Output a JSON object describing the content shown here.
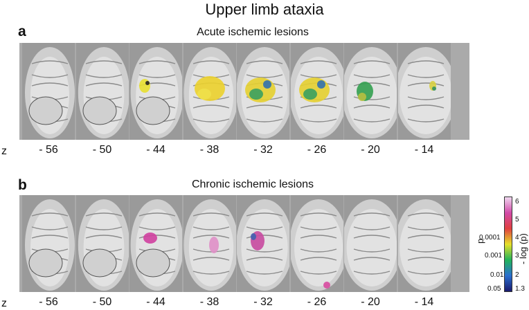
{
  "figure": {
    "title": "Upper limb ataxia",
    "z_axis_label": "z"
  },
  "panels": [
    {
      "letter": "a",
      "title": "Acute ischemic lesions",
      "slices": [
        {
          "z": "- 56",
          "lesion": "none"
        },
        {
          "z": "- 50",
          "lesion": "none"
        },
        {
          "z": "- 44",
          "lesion": "small-yellow"
        },
        {
          "z": "- 38",
          "lesion": "large-yellow"
        },
        {
          "z": "- 32",
          "lesion": "yellow-green-blue"
        },
        {
          "z": "- 26",
          "lesion": "yellow-green-blue"
        },
        {
          "z": "- 20",
          "lesion": "green"
        },
        {
          "z": "- 14",
          "lesion": "small-yellow-green"
        }
      ]
    },
    {
      "letter": "b",
      "title": "Chronic ischemic lesions",
      "slices": [
        {
          "z": "- 56",
          "lesion": "none"
        },
        {
          "z": "- 50",
          "lesion": "none"
        },
        {
          "z": "- 44",
          "lesion": "magenta"
        },
        {
          "z": "- 38",
          "lesion": "faint-magenta"
        },
        {
          "z": "- 32",
          "lesion": "magenta-blue"
        },
        {
          "z": "- 26",
          "lesion": "small-magenta"
        },
        {
          "z": "- 20",
          "lesion": "none"
        },
        {
          "z": "- 14",
          "lesion": "none"
        }
      ]
    }
  ],
  "colorbar": {
    "p_label": "p",
    "log_label": "- log (p)",
    "p_ticks": [
      "0.0001",
      "0.001",
      "0.01",
      "0.05"
    ],
    "log_ticks": [
      "6",
      "5",
      "4",
      "3",
      "2",
      "1.3"
    ],
    "colors": [
      "#1a1a6e",
      "#2a6fd0",
      "#22b35a",
      "#e6e02a",
      "#e04040",
      "#d24aa8",
      "#f0d8f0"
    ]
  }
}
